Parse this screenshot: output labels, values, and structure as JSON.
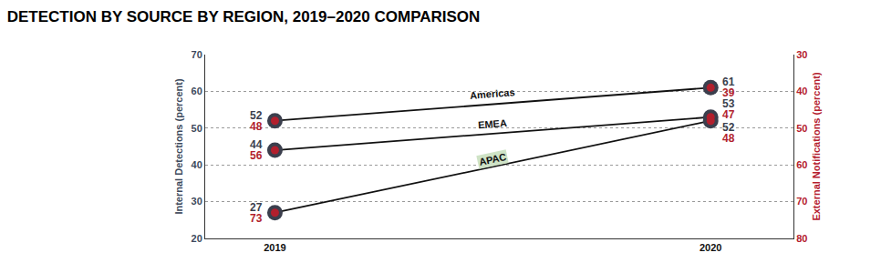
{
  "chart_data": {
    "type": "line",
    "title": "DETECTION BY SOURCE BY REGION, 2019–2020 COMPARISON",
    "x": [
      2019,
      2020
    ],
    "xlim": [
      2018.84,
      2020.19
    ],
    "xticks": [
      2019,
      2020
    ],
    "ylabel": "Internal Detections (percent)",
    "y2label": "External Notifications (percent)",
    "ylim": [
      20,
      70
    ],
    "yticks": [
      20,
      30,
      40,
      50,
      60,
      70
    ],
    "y2lim": [
      80,
      30
    ],
    "y2ticks": [
      30,
      40,
      50,
      60,
      70,
      80
    ],
    "grid": true,
    "data_labels": true,
    "series": [
      {
        "name": "Americas",
        "color": "#3b3f4d",
        "values": [
          52,
          61
        ]
      },
      {
        "name": "EMEA",
        "color": "#3b3f4d",
        "values": [
          44,
          53
        ]
      },
      {
        "name": "APAC",
        "color": "#3b3f4d",
        "values": [
          27,
          52
        ]
      },
      {
        "name": "Americas",
        "color": "#b21f2d",
        "axis": "y2",
        "values": [
          48,
          39
        ]
      },
      {
        "name": "EMEA",
        "color": "#b21f2d",
        "axis": "y2",
        "values": [
          56,
          47
        ]
      },
      {
        "name": "APAC",
        "color": "#b21f2d",
        "axis": "y2",
        "values": [
          73,
          48
        ]
      }
    ]
  }
}
